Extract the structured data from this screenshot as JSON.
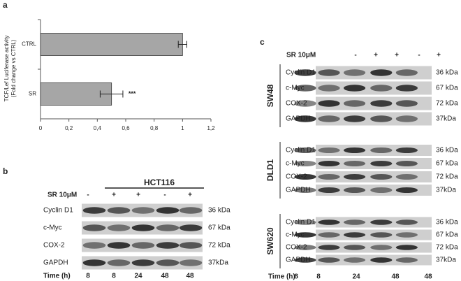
{
  "panel_labels": [
    "a",
    "b",
    "c"
  ],
  "chart_data": {
    "type": "hbar",
    "ylabel": [
      "TCF/Lef Luciferase activity",
      "(Fold change vs CTRL)"
    ],
    "categories": [
      "CTRL",
      "SR"
    ],
    "values": [
      1,
      0.5
    ],
    "errors": [
      0.03,
      0.08
    ],
    "color": "#a6a6a6",
    "annotation": "***",
    "xlim": [
      0,
      1.2
    ],
    "xticks": [
      0,
      {
        "value": 0.2,
        "label": "0,2"
      },
      {
        "value": 0.4,
        "label": "0,4"
      },
      {
        "value": 0.6,
        "label": "0,6"
      },
      {
        "value": 0.8,
        "label": "0,8"
      },
      1,
      {
        "value": 1.2,
        "label": "1,2"
      }
    ]
  },
  "blot_b": {
    "title": "HCT116",
    "treatment_label": "SR 10μM",
    "treatment": [
      "-",
      "+",
      "+",
      "-",
      "+"
    ],
    "rows": [
      {
        "protein": "Cyclin D1",
        "size": "36 kDa"
      },
      {
        "protein": "c-Myc",
        "size": "67 kDa"
      },
      {
        "protein": "COX-2",
        "size": "72 kDa"
      },
      {
        "protein": "GAPDH",
        "size": "37kDa"
      }
    ],
    "time_label": "Time (h)",
    "times": [
      8,
      8,
      24,
      48,
      48
    ]
  },
  "blot_c": {
    "treatment_label": "SR 10μM",
    "treatment": [
      "-",
      "+",
      "+",
      "-",
      "+"
    ],
    "groups": [
      {
        "cell_line": "SW48",
        "rows": [
          {
            "protein": "Cyclin D1",
            "size": "36 kDa"
          },
          {
            "protein": "c-Myc",
            "size": "67 kDa"
          },
          {
            "protein": "COX-2",
            "size": "72 kDa"
          },
          {
            "protein": "GAPDH",
            "size": "37kDa"
          }
        ]
      },
      {
        "cell_line": "DLD1",
        "rows": [
          {
            "protein": "Cyclin D1",
            "size": "36 kDa"
          },
          {
            "protein": "c-Myc",
            "size": "67 kDa"
          },
          {
            "protein": "COX-2",
            "size": "72 kDa"
          },
          {
            "protein": "GAPDH",
            "size": "37kDa"
          }
        ]
      },
      {
        "cell_line": "SW620",
        "rows": [
          {
            "protein": "Cyclin D1",
            "size": "36 kDa"
          },
          {
            "protein": "c-Myc",
            "size": "67 kDa"
          },
          {
            "protein": "COX-2",
            "size": "72 kDa"
          },
          {
            "protein": "GAPDH",
            "size": "37kDa"
          }
        ]
      }
    ],
    "time_label": "Time (h)",
    "times": [
      8,
      8,
      24,
      48,
      48
    ]
  }
}
